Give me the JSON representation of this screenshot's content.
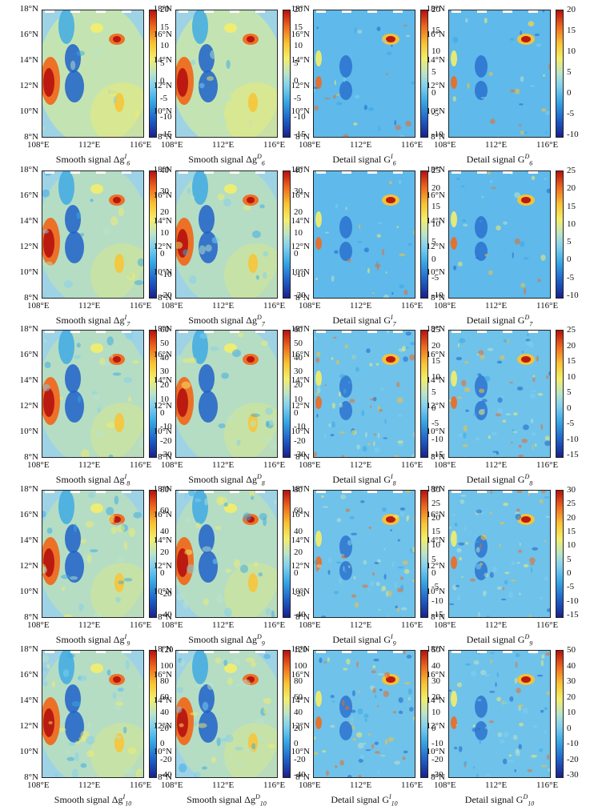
{
  "y_axis_labels": [
    "18°N",
    "16°N",
    "14°N",
    "12°N",
    "10°N",
    "8°N"
  ],
  "x_axis_labels": [
    "108°E",
    "112°E",
    "116°E"
  ],
  "rows": [
    {
      "panels": [
        {
          "caption_prefix": "Smooth signal Δg",
          "sup": "I",
          "sub": "6",
          "ticks": [
            "20",
            "15",
            "10",
            "5",
            "0",
            "-5",
            "-10",
            "-15"
          ],
          "style": "smooth"
        },
        {
          "caption_prefix": "Smooth signal Δg",
          "sup": "D",
          "sub": "6",
          "ticks": [
            "20",
            "15",
            "10",
            "5",
            "0",
            "-5",
            "-10",
            "-15"
          ],
          "style": "smooth"
        },
        {
          "caption_prefix": "Detail signal G",
          "sup": "I",
          "sub": "6",
          "ticks": [
            "20",
            "15",
            "10",
            "5",
            "0",
            "-5",
            "-10"
          ],
          "style": "detail"
        },
        {
          "caption_prefix": "Detail signal G",
          "sup": "D",
          "sub": "6",
          "ticks": [
            "20",
            "15",
            "10",
            "5",
            "0",
            "-5",
            "-10"
          ],
          "style": "detail"
        }
      ]
    },
    {
      "panels": [
        {
          "caption_prefix": "Smooth signal Δg",
          "sup": "I",
          "sub": "7",
          "ticks": [
            "40",
            "30",
            "20",
            "10",
            "0",
            "-10",
            "-20"
          ],
          "style": "smooth"
        },
        {
          "caption_prefix": "Smooth signal Δg",
          "sup": "D",
          "sub": "7",
          "ticks": [
            "40",
            "30",
            "20",
            "10",
            "0",
            "-10",
            "-20"
          ],
          "style": "smooth"
        },
        {
          "caption_prefix": "Detail signal G",
          "sup": "I",
          "sub": "7",
          "ticks": [
            "25",
            "20",
            "15",
            "10",
            "5",
            "0",
            "-5",
            "-10"
          ],
          "style": "detail"
        },
        {
          "caption_prefix": "Detail signal G",
          "sup": "D",
          "sub": "7",
          "ticks": [
            "25",
            "20",
            "15",
            "10",
            "5",
            "0",
            "-5",
            "-10"
          ],
          "style": "detail"
        }
      ]
    },
    {
      "panels": [
        {
          "caption_prefix": "Smooth signal Δg",
          "sup": "I",
          "sub": "8",
          "ticks": [
            "60",
            "50",
            "40",
            "30",
            "20",
            "10",
            "0",
            "-10",
            "-20",
            "-30"
          ],
          "style": "smooth"
        },
        {
          "caption_prefix": "Smooth signal Δg",
          "sup": "D",
          "sub": "8",
          "ticks": [
            "60",
            "50",
            "40",
            "30",
            "20",
            "10",
            "0",
            "-10",
            "-20",
            "-30"
          ],
          "style": "smooth"
        },
        {
          "caption_prefix": "Detail signal G",
          "sup": "I",
          "sub": "8",
          "ticks": [
            "25",
            "20",
            "15",
            "10",
            "5",
            "0",
            "-5",
            "-10",
            "-15"
          ],
          "style": "fine"
        },
        {
          "caption_prefix": "Detail signal G",
          "sup": "D",
          "sub": "8",
          "ticks": [
            "25",
            "20",
            "15",
            "10",
            "5",
            "0",
            "-5",
            "-10",
            "-15"
          ],
          "style": "fine"
        }
      ]
    },
    {
      "panels": [
        {
          "caption_prefix": "Smooth signal Δg",
          "sup": "I",
          "sub": "9",
          "ticks": [
            "80",
            "60",
            "40",
            "20",
            "0",
            "-20",
            "-40"
          ],
          "style": "smooth"
        },
        {
          "caption_prefix": "Smooth signal Δg",
          "sup": "D",
          "sub": "9",
          "ticks": [
            "80",
            "60",
            "40",
            "20",
            "0",
            "-20",
            "-40"
          ],
          "style": "smooth"
        },
        {
          "caption_prefix": "Detail signal G",
          "sup": "I",
          "sub": "9",
          "ticks": [
            "30",
            "25",
            "20",
            "15",
            "10",
            "5",
            "0",
            "-5",
            "-10",
            "-15"
          ],
          "style": "fine"
        },
        {
          "caption_prefix": "Detail signal G",
          "sup": "D",
          "sub": "9",
          "ticks": [
            "30",
            "25",
            "20",
            "15",
            "10",
            "5",
            "0",
            "-5",
            "-10",
            "-15"
          ],
          "style": "fine"
        }
      ]
    },
    {
      "panels": [
        {
          "caption_prefix": "Smooth signal Δg",
          "sup": "I",
          "sub": "10",
          "ticks": [
            "120",
            "100",
            "80",
            "60",
            "40",
            "20",
            "0",
            "-20",
            "-40"
          ],
          "style": "smooth"
        },
        {
          "caption_prefix": "Smooth signal Δg",
          "sup": "D",
          "sub": "10",
          "ticks": [
            "120",
            "100",
            "80",
            "60",
            "40",
            "20",
            "0",
            "-20",
            "-40"
          ],
          "style": "smooth"
        },
        {
          "caption_prefix": "Detail signal G",
          "sup": "I",
          "sub": "10",
          "ticks": [
            "50",
            "40",
            "30",
            "20",
            "10",
            "0",
            "-10",
            "-20",
            "-30"
          ],
          "style": "fine"
        },
        {
          "caption_prefix": "Detail signal G",
          "sup": "D",
          "sub": "10",
          "ticks": [
            "50",
            "40",
            "30",
            "20",
            "10",
            "0",
            "-10",
            "-20",
            "-30"
          ],
          "style": "fine"
        }
      ]
    }
  ]
}
